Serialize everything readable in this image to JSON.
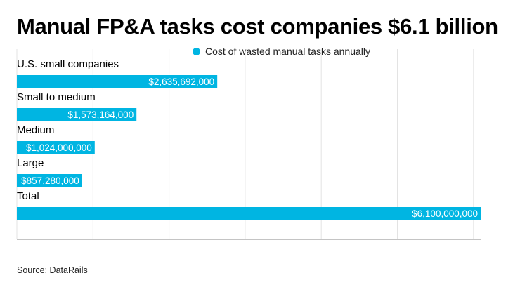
{
  "header": {
    "title": "Manual FP&A tasks cost companies $6.1 billion"
  },
  "footer": {
    "source": "Source: DataRails"
  },
  "chart_data": {
    "type": "bar",
    "orientation": "horizontal",
    "title": "Manual FP&A tasks cost companies $6.1 billion",
    "xlabel": "",
    "ylabel": "",
    "categories": [
      "U.S. small companies",
      "Small to medium",
      "Medium",
      "Large",
      "Total"
    ],
    "series": [
      {
        "name": "Cost of wasted manual tasks annually",
        "color": "#00b5e2",
        "values": [
          2635692000,
          1573164000,
          1024000000,
          857280000,
          6100000000
        ],
        "labels": [
          "$2,635,692,000",
          "$1,573,164,000",
          "$1,024,000,000",
          "$857,280,000",
          "$6,100,000,000"
        ]
      }
    ],
    "xlim": [
      0,
      6100000000
    ],
    "grid": "vertical",
    "legend_position": "top-center"
  }
}
